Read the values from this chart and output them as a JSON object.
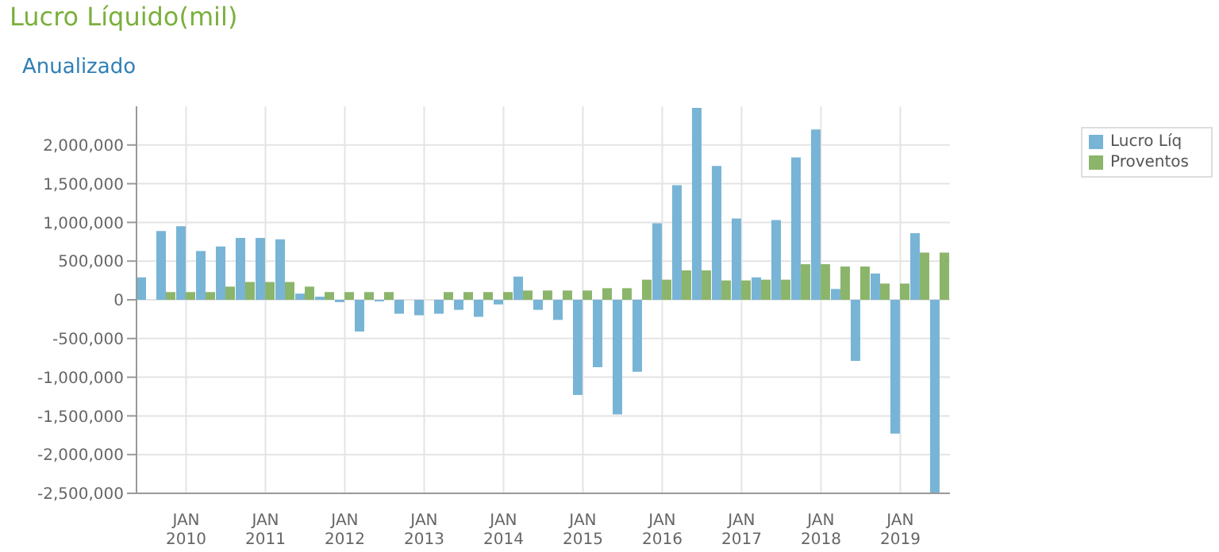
{
  "chart_data": {
    "type": "bar",
    "title": "Lucro Líquido(mil)",
    "subtitle": "Anualizado",
    "categories": [
      null,
      null,
      "JAN 2010",
      null,
      null,
      null,
      "JAN 2011",
      null,
      null,
      null,
      "JAN 2012",
      null,
      null,
      null,
      "JAN 2013",
      null,
      null,
      null,
      "JAN 2014",
      null,
      null,
      null,
      "JAN 2015",
      null,
      null,
      null,
      "JAN 2016",
      null,
      null,
      null,
      "JAN 2017",
      null,
      null,
      null,
      "JAN 2018",
      null,
      null,
      null,
      "JAN 2019",
      null,
      null
    ],
    "series": [
      {
        "name": "Lucro Líq",
        "color": "#78b4d6",
        "values": [
          290000,
          890000,
          950000,
          630000,
          690000,
          800000,
          800000,
          780000,
          80000,
          40000,
          -30000,
          -410000,
          -20000,
          -180000,
          -200000,
          -180000,
          -130000,
          -220000,
          -60000,
          300000,
          -130000,
          -260000,
          -1230000,
          -870000,
          -1480000,
          -930000,
          990000,
          1480000,
          2480000,
          1730000,
          1050000,
          290000,
          1030000,
          1840000,
          2200000,
          140000,
          -790000,
          340000,
          -1730000,
          860000,
          -2500000
        ]
      },
      {
        "name": "Proventos",
        "color": "#8bb56b",
        "values": [
          0,
          100000,
          100000,
          100000,
          170000,
          230000,
          230000,
          230000,
          170000,
          100000,
          100000,
          100000,
          100000,
          0,
          0,
          100000,
          100000,
          100000,
          100000,
          120000,
          120000,
          120000,
          120000,
          150000,
          150000,
          260000,
          260000,
          380000,
          380000,
          250000,
          250000,
          260000,
          260000,
          460000,
          460000,
          430000,
          430000,
          210000,
          210000,
          610000,
          610000
        ]
      }
    ],
    "ylim": [
      -2500000,
      2500000
    ],
    "yticks": [
      {
        "value": -2500000,
        "label": "-2,500,000"
      },
      {
        "value": -2000000,
        "label": "-2,000,000"
      },
      {
        "value": -1500000,
        "label": "-1,500,000"
      },
      {
        "value": -1000000,
        "label": "-1,000,000"
      },
      {
        "value": -500000,
        "label": "-500,000"
      },
      0,
      {
        "value": 500000,
        "label": "500,000"
      },
      {
        "value": 1000000,
        "label": "1,000,000"
      },
      {
        "value": 1500000,
        "label": "1,500,000"
      },
      {
        "value": 2000000,
        "label": "2,000,000"
      }
    ],
    "grid": true,
    "legend": "top right"
  }
}
